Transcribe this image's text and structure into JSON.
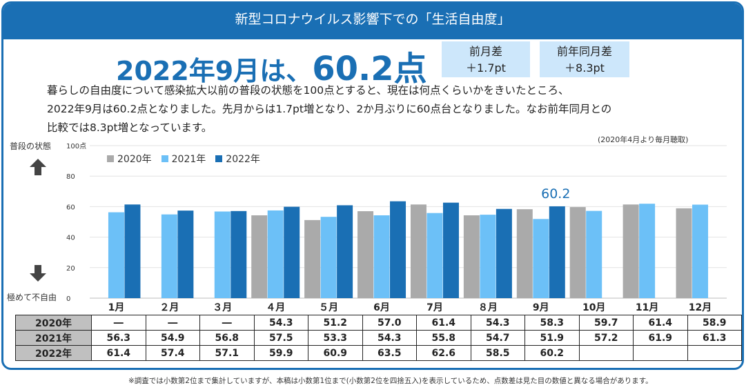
{
  "header": {
    "title": "新型コロナウイルス影響下での「生活自由度」"
  },
  "headline": {
    "part1": "2022年9月は、",
    "part2": "60.2点"
  },
  "stats": [
    {
      "label": "前月差",
      "value": "＋1.7pt"
    },
    {
      "label": "前年同月差",
      "value": "＋8.3pt"
    }
  ],
  "description": {
    "line1": "暮らしの自由度について感染拡大以前の普段の状態を100点とすると、現在は何点くらいかをきいたところ、",
    "line2": "2022年9月は60.2点となりました。先月からは1.7pt増となり、2か月ぶりに60点台となりました。なお前年同月との",
    "line3": "比較では8.3pt増となっています。"
  },
  "note_top": "(2020年4月より毎月聴取)",
  "side": {
    "top_label": "普段の状態",
    "bottom_label": "極めて不自由"
  },
  "footnote": "※調査では小数第2位まで集計していますが、本稿は小数第1位まで(小数第2位を四捨五入)を表示しているため、点数差は見た目の数値と異なる場合があります。",
  "colors": {
    "y2020": "#aaaaaa",
    "y2021": "#6cc0f7",
    "y2022": "#1a6fb4",
    "header": "#1a6fb4",
    "statbox": "#cde7fb"
  },
  "chart_data": {
    "type": "bar",
    "categories": [
      "1月",
      "２月",
      "３月",
      "４月",
      "５月",
      "6月",
      "7月",
      "８月",
      "9月",
      "10月",
      "11月",
      "12月"
    ],
    "series": [
      {
        "name": "2020年",
        "values": [
          null,
          null,
          null,
          54.3,
          51.2,
          57.0,
          61.4,
          54.3,
          58.3,
          59.7,
          61.4,
          58.9
        ]
      },
      {
        "name": "2021年",
        "values": [
          56.3,
          54.9,
          56.8,
          57.5,
          53.3,
          54.3,
          55.8,
          54.7,
          51.9,
          57.2,
          61.9,
          61.3
        ]
      },
      {
        "name": "2022年",
        "values": [
          61.4,
          57.4,
          57.1,
          59.9,
          60.9,
          63.5,
          62.6,
          58.5,
          60.2,
          null,
          null,
          null
        ]
      }
    ],
    "ylim": [
      0,
      100
    ],
    "yticks": [
      "0",
      "20",
      "40",
      "60",
      "80",
      "100点"
    ],
    "annotation": {
      "label": "60.2",
      "category": "9月",
      "series": "2022年"
    },
    "table": {
      "rows": [
        {
          "year": "2020年",
          "cells": [
            "―",
            "―",
            "―",
            "54.3",
            "51.2",
            "57.0",
            "61.4",
            "54.3",
            "58.3",
            "59.7",
            "61.4",
            "58.9"
          ]
        },
        {
          "year": "2021年",
          "cells": [
            "56.3",
            "54.9",
            "56.8",
            "57.5",
            "53.3",
            "54.3",
            "55.8",
            "54.7",
            "51.9",
            "57.2",
            "61.9",
            "61.3"
          ]
        },
        {
          "year": "2022年",
          "cells": [
            "61.4",
            "57.4",
            "57.1",
            "59.9",
            "60.9",
            "63.5",
            "62.6",
            "58.5",
            "60.2",
            "",
            "",
            ""
          ]
        }
      ]
    }
  }
}
